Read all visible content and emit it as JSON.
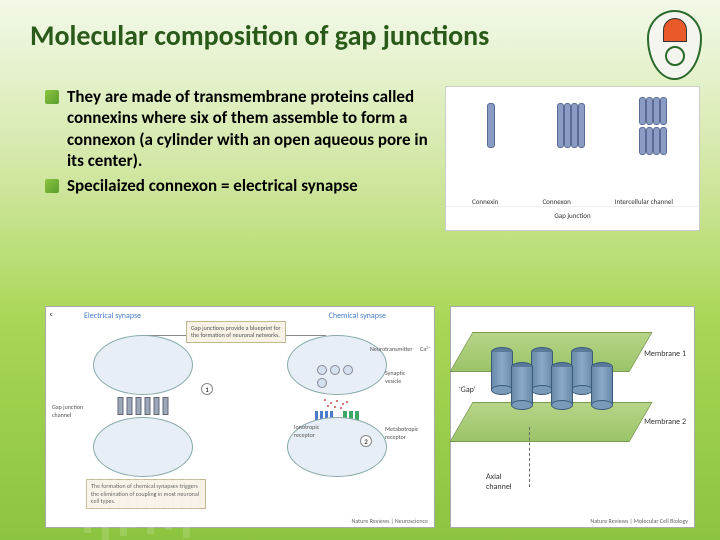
{
  "title": "Molecular composition of gap junctions",
  "bullets": [
    "They are made of transmembrane proteins called connexins where six of them assemble to form a connexon (a cylinder with an open aqueous pore in its center).",
    "Specilaized connexon = electrical synapse"
  ],
  "figTop": {
    "labels": [
      "Connexin",
      "Connexon",
      "Intercellular channel"
    ],
    "sublabel": "Gap junction"
  },
  "figLeft": {
    "panelC": "c",
    "headers": {
      "left": "Electrical synapse",
      "right": "Chemical synapse"
    },
    "infoTop": "Gap junctions provide a blueprint for the formation of neuronal networks.",
    "infoBottom": "The formation of chemical synapses triggers the elimination of coupling in most neuronal cell types.",
    "labels": {
      "gapChannel": "Gap junction channel",
      "neurotransmitter": "Neurotransmitter",
      "ca2": "Ca²⁺",
      "vesicle": "Synaptic vesicle",
      "ionotropic": "Ionotropic receptor",
      "metabotropic": "Metabotropic receptor"
    },
    "nums": [
      "1",
      "2"
    ],
    "credit": "Nature Reviews | Neuroscience"
  },
  "figRight": {
    "labels": {
      "gap": "'Gap'",
      "m1": "Membrane 1",
      "m2": "Membrane 2",
      "axial": "Axial channel"
    },
    "credit": "Nature Reviews | Molecular Cell Biology"
  },
  "colors": {
    "titleColor": "#2a5a1a",
    "bulletGreen": "#8bc43f",
    "membraneGreen": "#9ac468",
    "proteinBlue": "#8a9cc4",
    "cylinderBlue": "#6a8aaa"
  },
  "decoBarHeights": [
    40,
    55,
    48,
    62,
    45,
    58,
    50,
    42,
    56,
    48,
    52,
    46,
    60,
    44
  ]
}
